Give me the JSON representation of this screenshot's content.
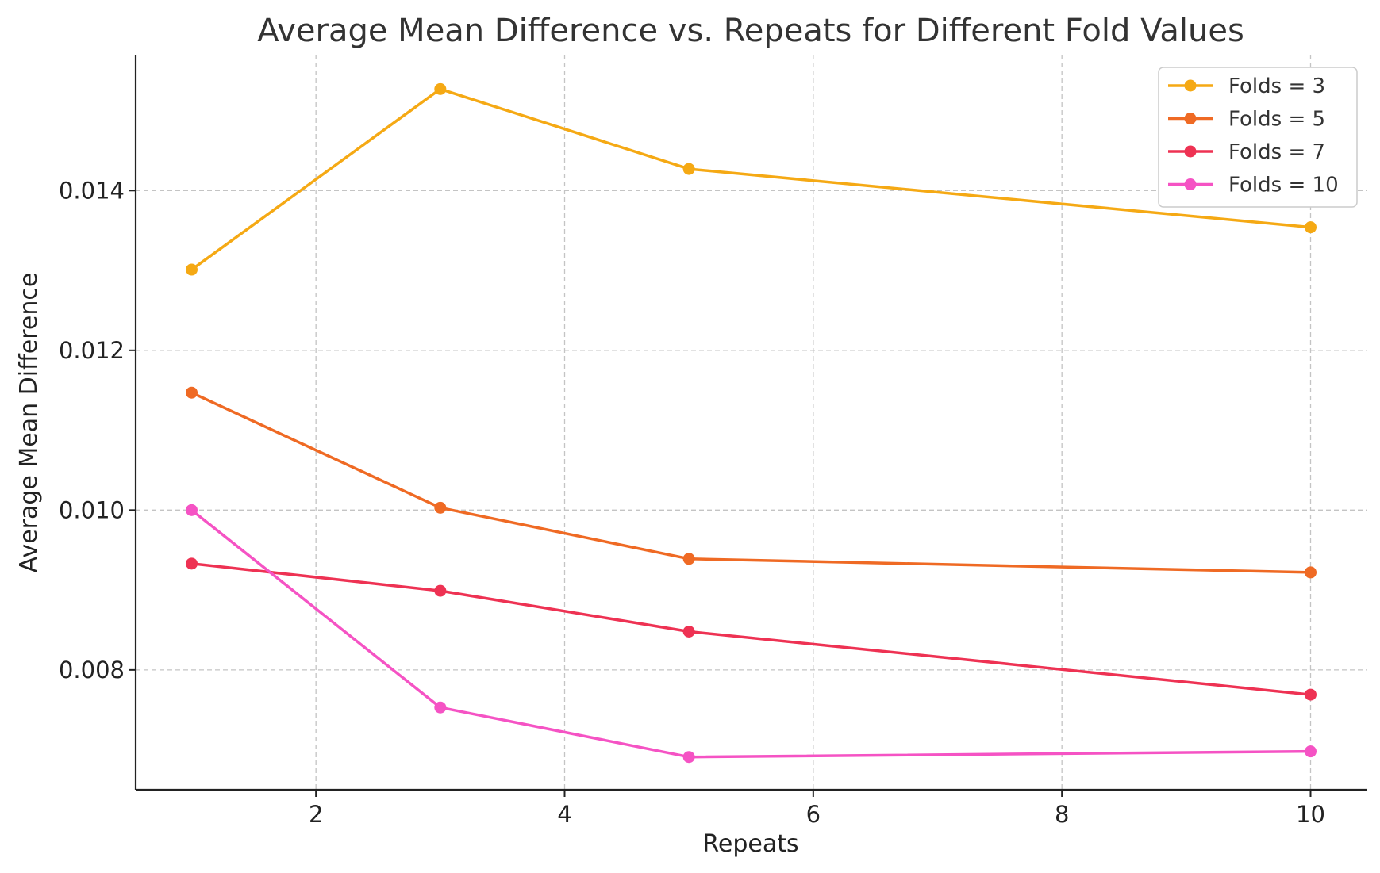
{
  "chart_data": {
    "type": "line",
    "title": "Average Mean Difference vs. Repeats for Different Fold Values",
    "xlabel": "Repeats",
    "ylabel": "Average Mean Difference",
    "x": [
      1,
      3,
      5,
      10
    ],
    "xlim": [
      0.55,
      10.45
    ],
    "ylim": [
      0.0065,
      0.0157
    ],
    "xticks": [
      2,
      4,
      6,
      8,
      10
    ],
    "xtick_labels": [
      "2",
      "4",
      "6",
      "8",
      "10"
    ],
    "yticks": [
      0.008,
      0.01,
      0.012,
      0.014
    ],
    "ytick_labels": [
      "0.008",
      "0.010",
      "0.012",
      "0.014"
    ],
    "grid": true,
    "legend_position": "top-right",
    "series": [
      {
        "name": "Folds = 3",
        "color": "#f5a914",
        "values": [
          0.01301,
          0.01527,
          0.01427,
          0.01354
        ]
      },
      {
        "name": "Folds = 5",
        "color": "#ef6a24",
        "values": [
          0.01147,
          0.01003,
          0.00939,
          0.00922
        ]
      },
      {
        "name": "Folds = 7",
        "color": "#ee3253",
        "values": [
          0.00933,
          0.00899,
          0.00848,
          0.00769
        ]
      },
      {
        "name": "Folds = 10",
        "color": "#f553c4",
        "values": [
          0.01,
          0.00753,
          0.00691,
          0.00698
        ]
      }
    ]
  }
}
